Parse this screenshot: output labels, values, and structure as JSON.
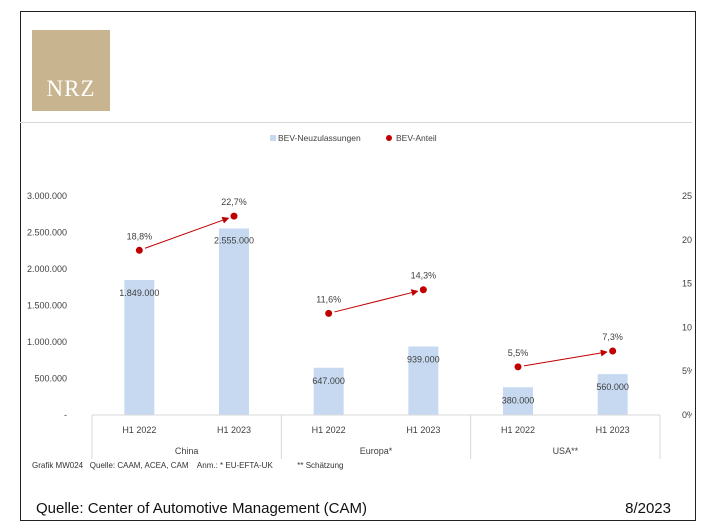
{
  "logo": {
    "text": "NRZ"
  },
  "footer": {
    "source": "Quelle: Center of Automotive Management (CAM)",
    "date": "8/2023"
  },
  "chart_note": "Grafik MW024   Quelle: CAAM, ACEA, CAM    Anm.: * EU-EFTA-UK           ** Schätzung",
  "colors": {
    "bar": "#c6d9f1",
    "line": "#c00000",
    "axis_text": "#404040",
    "grid": "#d9d9d9"
  },
  "chart_data": {
    "type": "bar",
    "categories": [
      "H1 2022",
      "H1 2023",
      "H1 2022",
      "H1 2023",
      "H1 2022",
      "H1 2023"
    ],
    "groups": [
      "China",
      "Europa*",
      "USA**"
    ],
    "series": [
      {
        "name": "BEV-Neuzulassungen",
        "type": "bar",
        "axis": "left",
        "values": [
          1849000,
          2555000,
          647000,
          939000,
          380000,
          560000
        ],
        "labels": [
          "1.849.000",
          "2.555.000",
          "647.000",
          "939.000",
          "380.000",
          "560.000"
        ]
      },
      {
        "name": "BEV-Anteil",
        "type": "scatter",
        "axis": "right",
        "values": [
          18.8,
          22.7,
          11.6,
          14.3,
          5.5,
          7.3
        ],
        "labels": [
          "18,8%",
          "22,7%",
          "11,6%",
          "14,3%",
          "5,5%",
          "7,3%"
        ]
      }
    ],
    "y_left": {
      "min": 0,
      "max": 3000000,
      "ticks": [
        "-",
        "500.000",
        "1.000.000",
        "1.500.000",
        "2.000.000",
        "2.500.000",
        "3.000.000"
      ]
    },
    "y_right": {
      "min": 0,
      "max": 25,
      "ticks": [
        "0%",
        "5%",
        "10%",
        "15%",
        "20%",
        "25%"
      ]
    },
    "legend_position": "top-center",
    "grid": false
  }
}
